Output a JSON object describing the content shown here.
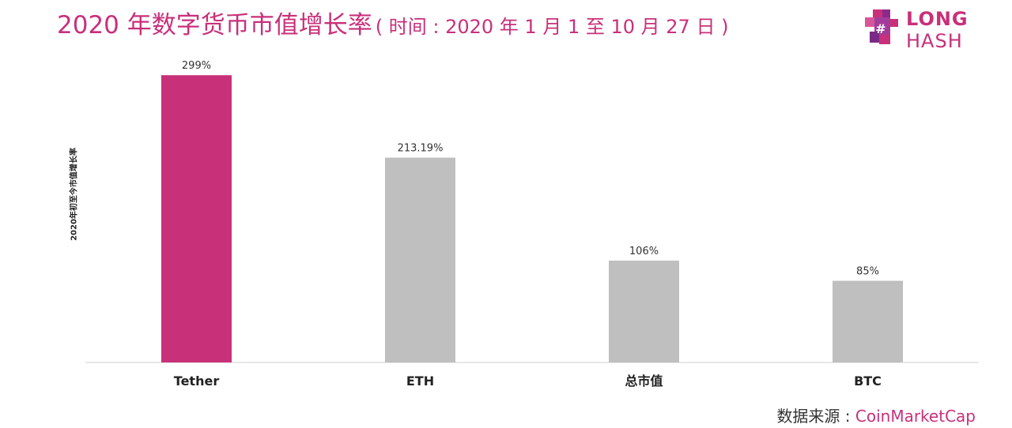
{
  "title": {
    "main": "2020 年数字货币市值增长率",
    "sub": "( 时间 : 2020 年 1 月 1 至 10 月 27 日 )"
  },
  "logo": {
    "line1": "LONG",
    "line2": "HASH"
  },
  "source": {
    "prefix": "数据来源 : ",
    "name": "CoinMarketCap"
  },
  "colors": {
    "accent": "#c8307a",
    "bar_default": "#bfbfbf",
    "axis": "#cfcfcf"
  },
  "chart_data": {
    "type": "bar",
    "title": "2020 年数字货币市值增长率",
    "ylabel": "2020年初至今市值增长率",
    "categories": [
      "Tether",
      "ETH",
      "总市值",
      "BTC"
    ],
    "values": [
      299,
      213.19,
      106,
      85
    ],
    "value_labels": [
      "299%",
      "213.19%",
      "106%",
      "85%"
    ],
    "unit": "%",
    "highlight_index": 0,
    "ylim": [
      0,
      300
    ],
    "grid": false,
    "legend": "none"
  }
}
